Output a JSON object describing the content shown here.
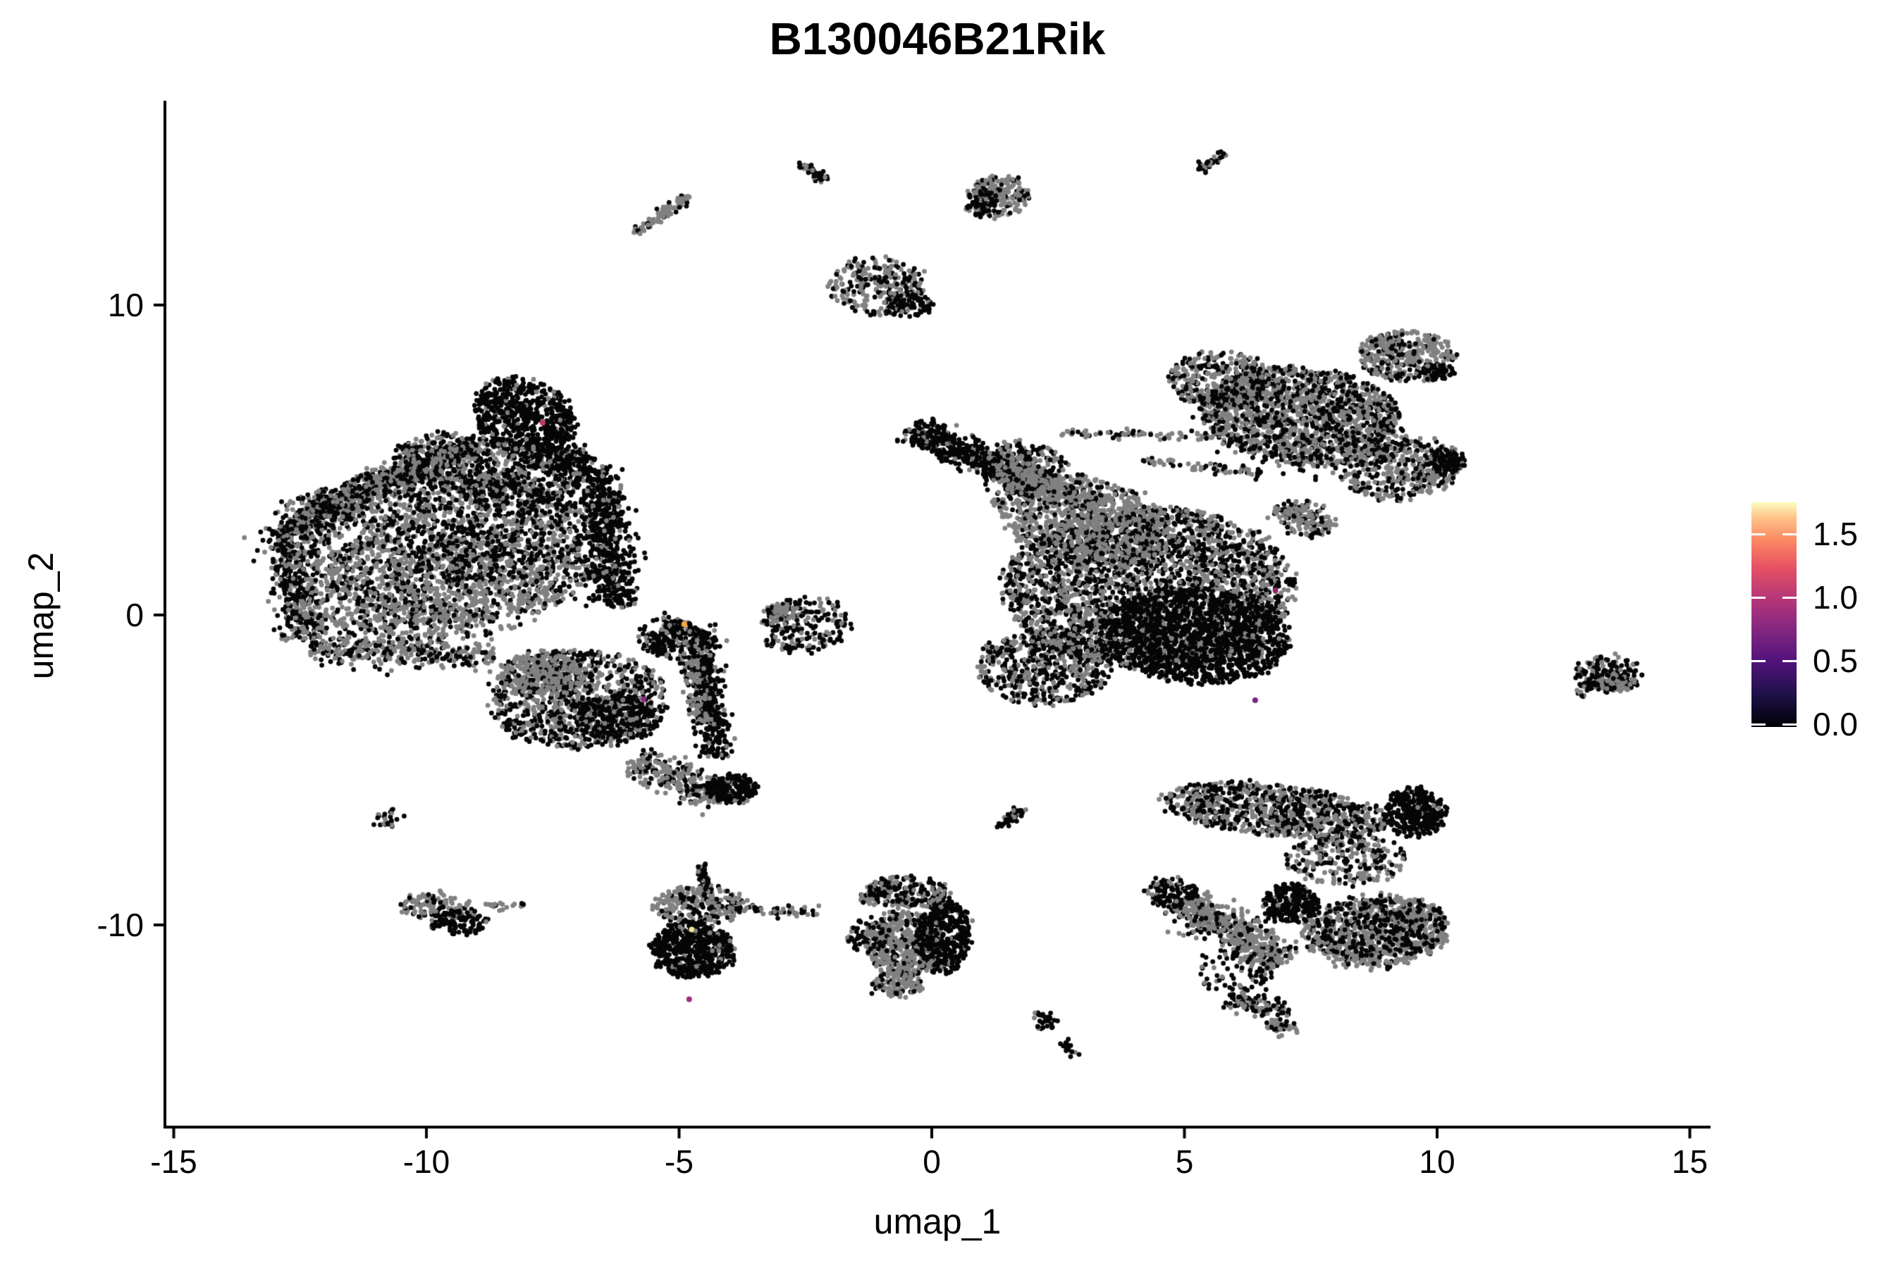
{
  "title": "B130046B21Rik",
  "x_axis": {
    "label": "umap_1",
    "tick_labels": [
      "-15",
      "-10",
      "-5",
      "0",
      "5",
      "10",
      "15"
    ],
    "tick_values": [
      -15,
      -10,
      -5,
      0,
      5,
      10,
      15
    ]
  },
  "y_axis": {
    "label": "umap_2",
    "tick_labels": [
      "10",
      "0",
      "-10"
    ],
    "tick_values": [
      10,
      0,
      -10
    ]
  },
  "colorbar": {
    "tick_labels": [
      "1.5",
      "1.0",
      "0.5",
      "0.0"
    ],
    "tick_values": [
      1.5,
      1.0,
      0.5,
      0.0
    ],
    "domain": [
      0,
      1.75
    ],
    "palette": "magma",
    "stops": [
      [
        "0.00",
        "#000004"
      ],
      [
        "0.14",
        "#1d1147"
      ],
      [
        "0.29",
        "#51127c"
      ],
      [
        "0.43",
        "#822681"
      ],
      [
        "0.57",
        "#b63679"
      ],
      [
        "0.71",
        "#e65164"
      ],
      [
        "0.83",
        "#fb8861"
      ],
      [
        "0.93",
        "#fec287"
      ],
      [
        "1.00",
        "#fcfdbf"
      ]
    ]
  },
  "point_colors": {
    "zero_expression_black": "#060606",
    "reference_gray": "#818181"
  },
  "chart_data": {
    "type": "scatter",
    "title": "B130046B21Rik",
    "xlabel": "umap_1",
    "ylabel": "umap_2",
    "xlim": [
      -15.2,
      15.4
    ],
    "ylim": [
      -16.5,
      16.6
    ],
    "grid": false,
    "legend": "colorbar-right",
    "point_radius_px": 3.4,
    "clusters": [
      {
        "shape": "ellipse",
        "cx": -9.6,
        "cy": 2.3,
        "rx": 3.1,
        "ry": 2.5,
        "rot": -12,
        "n": 1900,
        "black_frac": 0.38
      },
      {
        "shape": "ellipse",
        "cx": -8.05,
        "cy": 6.4,
        "rx": 0.95,
        "ry": 1.3,
        "rot": 20,
        "n": 650,
        "black_frac": 0.93
      },
      {
        "shape": "ellipse",
        "cx": -8.8,
        "cy": 4.7,
        "rx": 1.9,
        "ry": 1.0,
        "rot": -18,
        "n": 650,
        "black_frac": 0.62
      },
      {
        "shape": "line",
        "x1": -12.7,
        "y1": 2.9,
        "x2": -9.2,
        "y2": 5.5,
        "w": 0.5,
        "n": 700,
        "black_frac": 0.52
      },
      {
        "shape": "line",
        "x1": -12.85,
        "y1": 3.0,
        "x2": -12.35,
        "y2": -0.8,
        "w": 0.45,
        "n": 480,
        "black_frac": 0.62
      },
      {
        "shape": "line",
        "x1": -12.3,
        "y1": -1.1,
        "x2": -8.7,
        "y2": -1.35,
        "w": 0.4,
        "n": 320,
        "black_frac": 0.42
      },
      {
        "shape": "line",
        "x1": -6.55,
        "y1": 4.1,
        "x2": -6.25,
        "y2": 0.3,
        "w": 0.5,
        "n": 550,
        "black_frac": 0.88
      },
      {
        "shape": "line",
        "x1": -7.35,
        "y1": 5.3,
        "x2": -6.5,
        "y2": 4.2,
        "w": 0.4,
        "n": 230,
        "black_frac": 0.85
      },
      {
        "shape": "ellipse",
        "cx": -9.8,
        "cy": 0.9,
        "rx": 2.6,
        "ry": 1.7,
        "rot": 0,
        "n": 480,
        "black_frac": 0.3
      },
      {
        "shape": "ellipse",
        "cx": -8.9,
        "cy": 2.7,
        "rx": 2.0,
        "ry": 1.6,
        "rot": 0,
        "n": 330,
        "black_frac": 0.8
      },
      {
        "shape": "ellipse",
        "cx": -10.6,
        "cy": -0.2,
        "rx": 1.5,
        "ry": 0.9,
        "rot": 0,
        "n": 260,
        "black_frac": 0.25
      },
      {
        "shape": "ellipse",
        "cx": -7.0,
        "cy": -2.7,
        "rx": 1.75,
        "ry": 1.6,
        "rot": 15,
        "n": 900,
        "black_frac": 0.5
      },
      {
        "shape": "ellipse",
        "cx": -7.7,
        "cy": -1.9,
        "rx": 0.9,
        "ry": 0.7,
        "rot": 0,
        "n": 260,
        "black_frac": 0.18
      },
      {
        "shape": "ellipse",
        "cx": -6.2,
        "cy": -3.3,
        "rx": 0.85,
        "ry": 0.8,
        "rot": 0,
        "n": 300,
        "black_frac": 0.85
      },
      {
        "shape": "line",
        "x1": -5.5,
        "y1": -1.2,
        "x2": -4.9,
        "y2": -0.2,
        "w": 0.45,
        "n": 200,
        "black_frac": 0.7
      },
      {
        "shape": "line",
        "x1": -4.55,
        "y1": -0.4,
        "x2": -4.25,
        "y2": -4.6,
        "w": 0.3,
        "n": 420,
        "black_frac": 0.85
      },
      {
        "shape": "line",
        "x1": -4.9,
        "y1": -0.8,
        "x2": -4.5,
        "y2": -3.5,
        "w": 0.25,
        "n": 130,
        "black_frac": 0.3
      },
      {
        "shape": "line",
        "x1": -5.9,
        "y1": -4.7,
        "x2": -4.1,
        "y2": -5.85,
        "w": 0.5,
        "n": 300,
        "black_frac": 0.32
      },
      {
        "shape": "ellipse",
        "cx": -3.95,
        "cy": -5.6,
        "rx": 0.5,
        "ry": 0.45,
        "rot": 0,
        "n": 200,
        "black_frac": 0.92
      },
      {
        "shape": "ellipse",
        "cx": -2.5,
        "cy": -0.35,
        "rx": 0.8,
        "ry": 0.95,
        "rot": -40,
        "n": 200,
        "black_frac": 0.72
      },
      {
        "shape": "ellipse",
        "cx": -2.9,
        "cy": 0.1,
        "rx": 0.4,
        "ry": 0.3,
        "rot": 0,
        "n": 60,
        "black_frac": 0.2
      },
      {
        "shape": "line",
        "x1": -5.85,
        "y1": 12.35,
        "x2": -4.8,
        "y2": 13.5,
        "w": 0.13,
        "n": 85,
        "black_frac": 0.3
      },
      {
        "shape": "line",
        "x1": -2.55,
        "y1": 14.55,
        "x2": -2.15,
        "y2": 14.05,
        "w": 0.1,
        "n": 45,
        "black_frac": 0.75
      },
      {
        "shape": "ellipse",
        "cx": -1.05,
        "cy": 10.6,
        "rx": 1.0,
        "ry": 0.9,
        "rot": -35,
        "n": 260,
        "black_frac": 0.45
      },
      {
        "shape": "ellipse",
        "cx": -0.4,
        "cy": 10.0,
        "rx": 0.45,
        "ry": 0.35,
        "rot": 0,
        "n": 70,
        "black_frac": 0.9
      },
      {
        "shape": "ellipse",
        "cx": 1.35,
        "cy": 13.5,
        "rx": 0.62,
        "ry": 0.65,
        "rot": 0,
        "n": 190,
        "black_frac": 0.3
      },
      {
        "shape": "ellipse",
        "cx": 0.95,
        "cy": 13.3,
        "rx": 0.3,
        "ry": 0.4,
        "rot": 0,
        "n": 70,
        "black_frac": 0.85
      },
      {
        "shape": "line",
        "x1": 5.3,
        "y1": 14.35,
        "x2": 5.85,
        "y2": 15.0,
        "w": 0.12,
        "n": 40,
        "black_frac": 0.7
      },
      {
        "shape": "ellipse",
        "cx": 4.3,
        "cy": 0.9,
        "rx": 2.9,
        "ry": 2.6,
        "rot": 0,
        "n": 2900,
        "black_frac": 0.52
      },
      {
        "shape": "ellipse",
        "cx": 5.2,
        "cy": -0.7,
        "rx": 1.9,
        "ry": 1.5,
        "rot": -15,
        "n": 1400,
        "black_frac": 0.93
      },
      {
        "shape": "ellipse",
        "cx": 3.0,
        "cy": 3.1,
        "rx": 1.9,
        "ry": 1.3,
        "rot": -28,
        "n": 800,
        "black_frac": 0.25
      },
      {
        "shape": "line",
        "x1": -0.45,
        "y1": 6.0,
        "x2": 2.2,
        "y2": 4.1,
        "w": 0.45,
        "n": 600,
        "black_frac": 0.87
      },
      {
        "shape": "line",
        "x1": 1.3,
        "y1": 4.7,
        "x2": 3.3,
        "y2": 3.5,
        "w": 0.4,
        "n": 320,
        "black_frac": 0.22
      },
      {
        "shape": "ellipse",
        "cx": 2.2,
        "cy": -1.7,
        "rx": 1.3,
        "ry": 1.2,
        "rot": 0,
        "n": 550,
        "black_frac": 0.6
      },
      {
        "shape": "line",
        "x1": 2.6,
        "y1": 5.9,
        "x2": 6.4,
        "y2": 5.7,
        "w": 0.12,
        "n": 80,
        "black_frac": 0.3
      },
      {
        "shape": "line",
        "x1": 4.2,
        "y1": 5.0,
        "x2": 6.6,
        "y2": 4.55,
        "w": 0.12,
        "n": 60,
        "black_frac": 0.4
      },
      {
        "shape": "ellipse",
        "cx": 1.9,
        "cy": 5.0,
        "rx": 0.8,
        "ry": 0.5,
        "rot": -20,
        "n": 180,
        "black_frac": 0.5
      },
      {
        "shape": "ellipse",
        "cx": 7.3,
        "cy": 6.4,
        "rx": 2.0,
        "ry": 1.55,
        "rot": -18,
        "n": 1500,
        "black_frac": 0.35
      },
      {
        "shape": "ellipse",
        "cx": 9.4,
        "cy": 8.35,
        "rx": 0.95,
        "ry": 0.8,
        "rot": 0,
        "n": 360,
        "black_frac": 0.3
      },
      {
        "shape": "ellipse",
        "cx": 10.0,
        "cy": 7.85,
        "rx": 0.3,
        "ry": 0.25,
        "rot": 0,
        "n": 60,
        "black_frac": 0.92
      },
      {
        "shape": "ellipse",
        "cx": 5.7,
        "cy": 7.6,
        "rx": 1.0,
        "ry": 0.9,
        "rot": 0,
        "n": 330,
        "black_frac": 0.45
      },
      {
        "shape": "ellipse",
        "cx": 9.3,
        "cy": 4.7,
        "rx": 1.2,
        "ry": 1.0,
        "rot": 20,
        "n": 420,
        "black_frac": 0.42
      },
      {
        "shape": "ellipse",
        "cx": 10.2,
        "cy": 4.95,
        "rx": 0.35,
        "ry": 0.3,
        "rot": 0,
        "n": 80,
        "black_frac": 0.88
      },
      {
        "shape": "line",
        "x1": 6.9,
        "y1": 3.5,
        "x2": 7.8,
        "y2": 2.7,
        "w": 0.4,
        "n": 180,
        "black_frac": 0.38
      },
      {
        "shape": "ellipse",
        "cx": 7.3,
        "cy": 6.2,
        "rx": 2.2,
        "ry": 1.8,
        "rot": -18,
        "n": 240,
        "black_frac": 0.95
      },
      {
        "shape": "ellipse",
        "cx": 13.4,
        "cy": -1.9,
        "rx": 0.68,
        "ry": 0.55,
        "rot": -10,
        "n": 150,
        "black_frac": 0.8
      },
      {
        "shape": "ellipse",
        "cx": 13.55,
        "cy": -2.2,
        "rx": 0.4,
        "ry": 0.3,
        "rot": 0,
        "n": 55,
        "black_frac": 0.2
      },
      {
        "shape": "line",
        "x1": 12.8,
        "y1": -2.55,
        "x2": 13.15,
        "y2": -2.2,
        "w": 0.12,
        "n": 25,
        "black_frac": 0.55
      },
      {
        "shape": "ellipse",
        "cx": 6.8,
        "cy": -6.3,
        "rx": 2.3,
        "ry": 0.8,
        "rot": -10,
        "n": 850,
        "black_frac": 0.5
      },
      {
        "shape": "ellipse",
        "cx": 9.55,
        "cy": -6.4,
        "rx": 0.6,
        "ry": 0.8,
        "rot": 0,
        "n": 330,
        "black_frac": 0.95
      },
      {
        "shape": "line",
        "x1": 4.95,
        "y1": -9.2,
        "x2": 7.0,
        "y2": -11.2,
        "w": 0.55,
        "n": 520,
        "black_frac": 0.25
      },
      {
        "shape": "ellipse",
        "cx": 4.75,
        "cy": -8.95,
        "rx": 0.5,
        "ry": 0.45,
        "rot": 0,
        "n": 120,
        "black_frac": 0.8
      },
      {
        "shape": "ellipse",
        "cx": 7.1,
        "cy": -9.3,
        "rx": 0.55,
        "ry": 0.6,
        "rot": 0,
        "n": 260,
        "black_frac": 0.95
      },
      {
        "shape": "ellipse",
        "cx": 8.8,
        "cy": -10.2,
        "rx": 1.45,
        "ry": 1.15,
        "rot": 10,
        "n": 850,
        "black_frac": 0.22
      },
      {
        "shape": "ellipse",
        "cx": 8.9,
        "cy": -10.1,
        "rx": 1.3,
        "ry": 1.0,
        "rot": 10,
        "n": 180,
        "black_frac": 0.95
      },
      {
        "shape": "line",
        "x1": 5.9,
        "y1": -12.4,
        "x2": 7.1,
        "y2": -12.8,
        "w": 0.3,
        "n": 90,
        "black_frac": 0.55
      },
      {
        "shape": "ellipse",
        "cx": 6.9,
        "cy": -13.3,
        "rx": 0.35,
        "ry": 0.25,
        "rot": 0,
        "n": 40,
        "black_frac": 0.3
      },
      {
        "shape": "ellipse",
        "cx": 6.0,
        "cy": -11.6,
        "rx": 0.8,
        "ry": 0.8,
        "rot": 0,
        "n": 80,
        "black_frac": 0.7
      },
      {
        "shape": "ellipse",
        "cx": 8.2,
        "cy": -7.9,
        "rx": 1.2,
        "ry": 0.8,
        "rot": 0,
        "n": 260,
        "black_frac": 0.45
      },
      {
        "shape": "ellipse",
        "cx": -4.6,
        "cy": -9.35,
        "rx": 0.9,
        "ry": 0.6,
        "rot": 0,
        "n": 250,
        "black_frac": 0.35
      },
      {
        "shape": "ellipse",
        "cx": -4.75,
        "cy": -10.8,
        "rx": 0.8,
        "ry": 0.9,
        "rot": 0,
        "n": 550,
        "black_frac": 0.93
      },
      {
        "shape": "line",
        "x1": -4.55,
        "y1": -8.0,
        "x2": -4.5,
        "y2": -8.9,
        "w": 0.1,
        "n": 40,
        "black_frac": 0.8
      },
      {
        "shape": "line",
        "x1": -3.85,
        "y1": -9.5,
        "x2": -2.2,
        "y2": -9.6,
        "w": 0.12,
        "n": 55,
        "black_frac": 0.45
      },
      {
        "shape": "line",
        "x1": -1.4,
        "y1": -9.25,
        "x2": -0.75,
        "y2": -8.6,
        "w": 0.15,
        "n": 65,
        "black_frac": 0.3
      },
      {
        "shape": "ellipse",
        "cx": -0.55,
        "cy": -10.6,
        "rx": 0.8,
        "ry": 1.05,
        "rot": 0,
        "n": 480,
        "black_frac": 0.25
      },
      {
        "shape": "ellipse",
        "cx": 0.25,
        "cy": -10.4,
        "rx": 0.5,
        "ry": 1.2,
        "rot": 0,
        "n": 420,
        "black_frac": 0.9
      },
      {
        "shape": "ellipse",
        "cx": -0.5,
        "cy": -8.95,
        "rx": 0.85,
        "ry": 0.5,
        "rot": 0,
        "n": 200,
        "black_frac": 0.5
      },
      {
        "shape": "ellipse",
        "cx": -0.7,
        "cy": -11.9,
        "rx": 0.5,
        "ry": 0.4,
        "rot": 0,
        "n": 110,
        "black_frac": 0.3
      },
      {
        "shape": "ellipse",
        "cx": -1.3,
        "cy": -10.3,
        "rx": 0.4,
        "ry": 0.5,
        "rot": 0,
        "n": 60,
        "black_frac": 0.6
      },
      {
        "shape": "ellipse",
        "cx": -9.8,
        "cy": -9.45,
        "rx": 0.75,
        "ry": 0.45,
        "rot": -10,
        "n": 120,
        "black_frac": 0.3
      },
      {
        "shape": "ellipse",
        "cx": -9.35,
        "cy": -9.9,
        "rx": 0.55,
        "ry": 0.4,
        "rot": 0,
        "n": 110,
        "black_frac": 0.9
      },
      {
        "shape": "line",
        "x1": -8.85,
        "y1": -9.35,
        "x2": -8.05,
        "y2": -9.4,
        "w": 0.1,
        "n": 22,
        "black_frac": 0.15
      },
      {
        "shape": "ellipse",
        "cx": -10.75,
        "cy": -6.6,
        "rx": 0.22,
        "ry": 0.3,
        "rot": 0,
        "n": 24,
        "black_frac": 0.55
      },
      {
        "shape": "line",
        "x1": 1.35,
        "y1": -6.85,
        "x2": 1.75,
        "y2": -6.3,
        "w": 0.12,
        "n": 45,
        "black_frac": 0.9
      },
      {
        "shape": "ellipse",
        "cx": 2.25,
        "cy": -13.1,
        "rx": 0.23,
        "ry": 0.3,
        "rot": 0,
        "n": 30,
        "black_frac": 0.85
      },
      {
        "shape": "line",
        "x1": 2.6,
        "y1": -13.85,
        "x2": 2.9,
        "y2": -14.25,
        "w": 0.1,
        "n": 20,
        "black_frac": 0.9
      }
    ],
    "expressing_cells": [
      {
        "x": -7.7,
        "y": 6.2,
        "color": "#c1395f"
      },
      {
        "x": -4.9,
        "y": -0.3,
        "color": "#fca636"
      },
      {
        "x": -5.7,
        "y": -2.72,
        "color": "#8c2981"
      },
      {
        "x": -4.8,
        "y": -12.4,
        "color": "#9c2e7f"
      },
      {
        "x": -4.75,
        "y": -10.15,
        "color": "#f2e59b"
      },
      {
        "x": 6.4,
        "y": -2.75,
        "color": "#7d2482"
      },
      {
        "x": 6.8,
        "y": 0.8,
        "color": "#8a2267"
      }
    ]
  }
}
